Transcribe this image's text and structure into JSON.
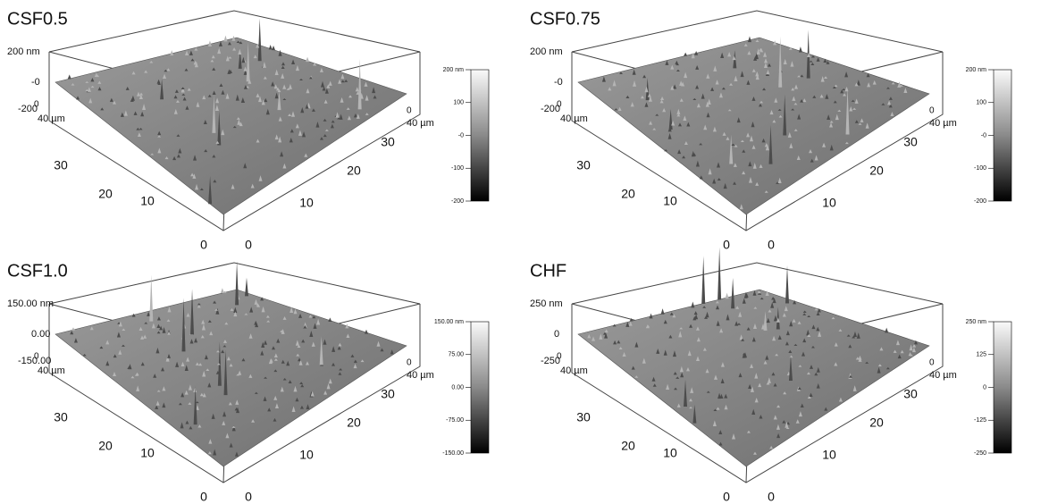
{
  "panels": [
    {
      "title": "CSF0.5",
      "z_labels": [
        "200 nm",
        "-0",
        "-200"
      ],
      "corner_label": "0",
      "left_axis": [
        "40 µm",
        "30",
        "20",
        "10",
        "0"
      ],
      "right_axis": [
        "0",
        "10",
        "20",
        "30",
        "40 µm"
      ],
      "back_label": "0",
      "colorbar": [
        "200 nm",
        "100",
        "-0",
        "-100",
        "-200"
      ]
    },
    {
      "title": "CSF0.75",
      "z_labels": [
        "200 nm",
        "-0",
        "-200"
      ],
      "corner_label": "0",
      "left_axis": [
        "40 µm",
        "30",
        "20",
        "10",
        "0"
      ],
      "right_axis": [
        "0",
        "10",
        "20",
        "30",
        "40 µm"
      ],
      "back_label": "0",
      "colorbar": [
        "200 nm",
        "100",
        "-0",
        "-100",
        "-200"
      ]
    },
    {
      "title": "CSF1.0",
      "z_labels": [
        "150.00 nm",
        "0.00",
        "-150.00"
      ],
      "corner_label": "0",
      "left_axis": [
        "40 µm",
        "30",
        "20",
        "10",
        "0"
      ],
      "right_axis": [
        "0",
        "10",
        "20",
        "30",
        "40 µm"
      ],
      "back_label": "0",
      "colorbar": [
        "150.00 nm",
        "75.00",
        "0.00",
        "-75.00",
        "-150.00"
      ]
    },
    {
      "title": "CHF",
      "z_labels": [
        "250 nm",
        "0",
        "-250"
      ],
      "corner_label": "0",
      "left_axis": [
        "40 µm",
        "30",
        "20",
        "10",
        "0"
      ],
      "right_axis": [
        "0",
        "10",
        "20",
        "30",
        "40 µm"
      ],
      "back_label": "0",
      "colorbar": [
        "250 nm",
        "125",
        "0",
        "-125",
        "-250"
      ]
    }
  ]
}
